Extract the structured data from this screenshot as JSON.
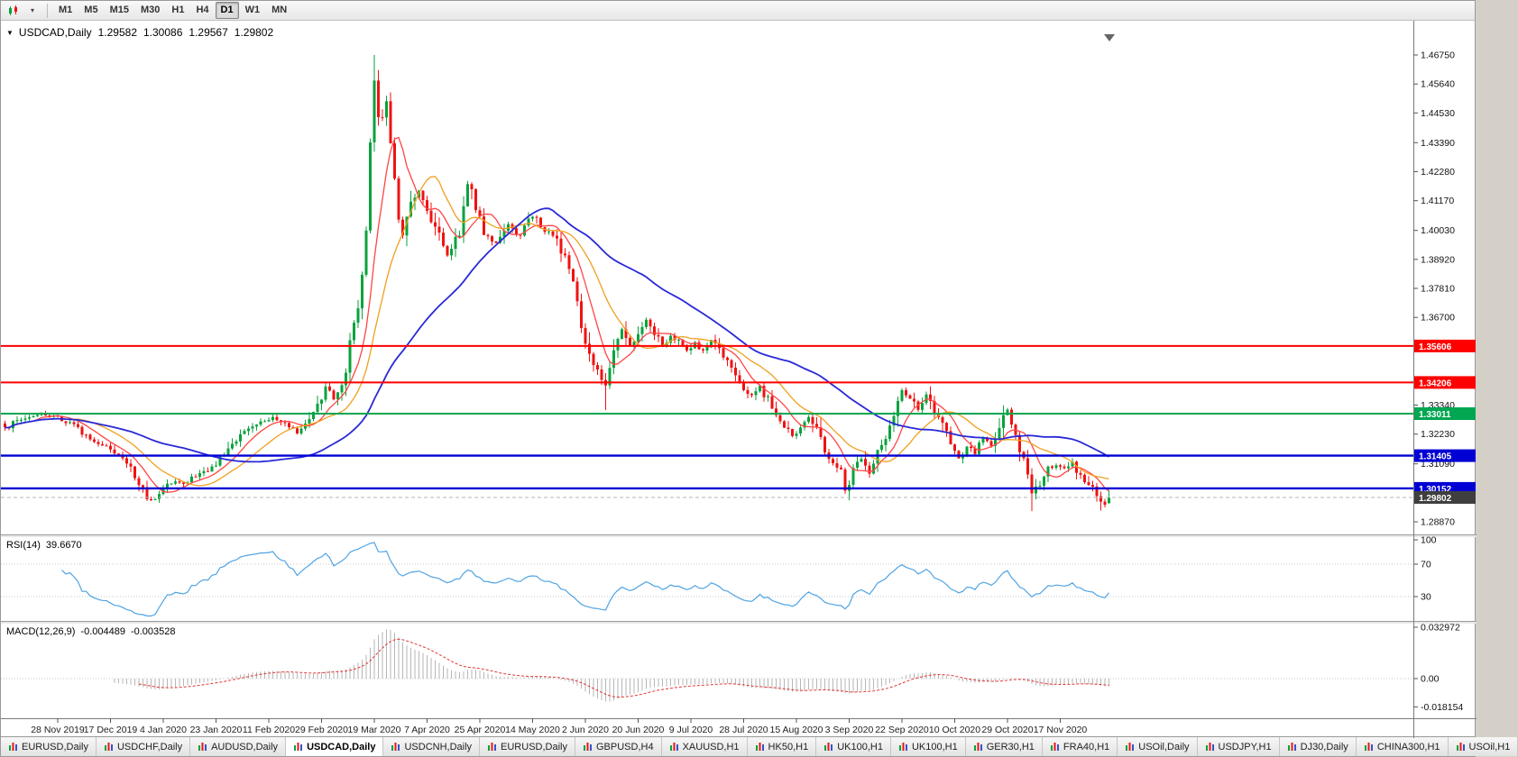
{
  "toolbar": {
    "timeframes": [
      {
        "label": "M1"
      },
      {
        "label": "M5"
      },
      {
        "label": "M15"
      },
      {
        "label": "M30"
      },
      {
        "label": "H1"
      },
      {
        "label": "H4"
      },
      {
        "label": "D1",
        "active": true
      },
      {
        "label": "W1"
      },
      {
        "label": "MN"
      }
    ]
  },
  "chart": {
    "symbol_title": "USDCAD,Daily",
    "ohlc": {
      "open": "1.29582",
      "high": "1.30086",
      "low": "1.29567",
      "close": "1.29802"
    },
    "colors": {
      "bull": "#09a23d",
      "bear": "#ef1212",
      "ma_fast": "#ff4545",
      "ma_mid": "#f0a020",
      "ma_slow": "#2929d8",
      "level_red": "#fe0000",
      "level_green": "#00a651",
      "level_blue": "#0000d4",
      "current_badge": "#3f3f3f",
      "rsi": "#4fa3e3",
      "macd_hist": "#b6b6b6",
      "macd_signal": "#e03535"
    },
    "price_axis_labels": [
      "1.46750",
      "1.45640",
      "1.44530",
      "1.43390",
      "1.42280",
      "1.41170",
      "1.40030",
      "1.38920",
      "1.37810",
      "1.36700",
      "1.33340",
      "1.32230",
      "1.31090",
      "1.28870"
    ],
    "levels": [
      {
        "price": 1.35606,
        "label": "1.35606",
        "color_key": "level_red",
        "width": 2
      },
      {
        "price": 1.34206,
        "label": "1.34206",
        "color_key": "level_red",
        "width": 2
      },
      {
        "price": 1.33011,
        "label": "1.33011",
        "color_key": "level_green",
        "width": 2
      },
      {
        "price": 1.31405,
        "label": "1.31405",
        "color_key": "level_blue",
        "width": 2.4
      },
      {
        "price": 1.30152,
        "label": "1.30152",
        "color_key": "level_blue",
        "width": 2.4
      }
    ],
    "current_price": "1.29802"
  },
  "chart_data": {
    "type": "candlestick",
    "symbol": "USDCAD",
    "timeframe": "Daily",
    "price_range": {
      "top": 1.4675,
      "bottom": 1.2887
    },
    "candle_count": 273,
    "close_anchors": [
      [
        0,
        1.3245
      ],
      [
        3,
        1.3275
      ],
      [
        6,
        1.329
      ],
      [
        9,
        1.33
      ],
      [
        13,
        1.3285
      ],
      [
        17,
        1.3255
      ],
      [
        21,
        1.32
      ],
      [
        26,
        1.3165
      ],
      [
        30,
        1.311
      ],
      [
        34,
        1.301
      ],
      [
        36,
        1.2965
      ],
      [
        38,
        1.2985
      ],
      [
        41,
        1.304
      ],
      [
        44,
        1.3035
      ],
      [
        48,
        1.307
      ],
      [
        52,
        1.3105
      ],
      [
        56,
        1.3185
      ],
      [
        60,
        1.324
      ],
      [
        63,
        1.327
      ],
      [
        66,
        1.329
      ],
      [
        69,
        1.326
      ],
      [
        72,
        1.323
      ],
      [
        75,
        1.327
      ],
      [
        77,
        1.333
      ],
      [
        79,
        1.34
      ],
      [
        81,
        1.336
      ],
      [
        83,
        1.34
      ],
      [
        85,
        1.356
      ],
      [
        87,
        1.372
      ],
      [
        88,
        1.385
      ],
      [
        89,
        1.401
      ],
      [
        90,
        1.433
      ],
      [
        91,
        1.456
      ],
      [
        92,
        1.442
      ],
      [
        94,
        1.448
      ],
      [
        95,
        1.434
      ],
      [
        97,
        1.405
      ],
      [
        98,
        1.398
      ],
      [
        100,
        1.41
      ],
      [
        102,
        1.416
      ],
      [
        104,
        1.408
      ],
      [
        106,
        1.402
      ],
      [
        109,
        1.391
      ],
      [
        112,
        1.4
      ],
      [
        114,
        1.419
      ],
      [
        116,
        1.409
      ],
      [
        118,
        1.399
      ],
      [
        121,
        1.395
      ],
      [
        124,
        1.403
      ],
      [
        127,
        1.398
      ],
      [
        130,
        1.406
      ],
      [
        133,
        1.4
      ],
      [
        136,
        1.398
      ],
      [
        138,
        1.389
      ],
      [
        140,
        1.379
      ],
      [
        142,
        1.363
      ],
      [
        144,
        1.352
      ],
      [
        146,
        1.346
      ],
      [
        148,
        1.342
      ],
      [
        150,
        1.355
      ],
      [
        152,
        1.362
      ],
      [
        154,
        1.356
      ],
      [
        156,
        1.361
      ],
      [
        158,
        1.366
      ],
      [
        160,
        1.361
      ],
      [
        162,
        1.356
      ],
      [
        164,
        1.36
      ],
      [
        166,
        1.358
      ],
      [
        168,
        1.3545
      ],
      [
        170,
        1.357
      ],
      [
        172,
        1.354
      ],
      [
        174,
        1.358
      ],
      [
        176,
        1.354
      ],
      [
        178,
        1.35
      ],
      [
        180,
        1.345
      ],
      [
        182,
        1.34
      ],
      [
        184,
        1.337
      ],
      [
        186,
        1.341
      ],
      [
        188,
        1.335
      ],
      [
        190,
        1.329
      ],
      [
        192,
        1.326
      ],
      [
        194,
        1.322
      ],
      [
        196,
        1.324
      ],
      [
        198,
        1.329
      ],
      [
        200,
        1.323
      ],
      [
        202,
        1.316
      ],
      [
        204,
        1.312
      ],
      [
        206,
        1.308
      ],
      [
        207,
        1.301
      ],
      [
        209,
        1.309
      ],
      [
        211,
        1.313
      ],
      [
        213,
        1.308
      ],
      [
        215,
        1.317
      ],
      [
        217,
        1.322
      ],
      [
        219,
        1.331
      ],
      [
        221,
        1.339
      ],
      [
        223,
        1.336
      ],
      [
        225,
        1.332
      ],
      [
        227,
        1.337
      ],
      [
        229,
        1.331
      ],
      [
        231,
        1.327
      ],
      [
        233,
        1.317
      ],
      [
        235,
        1.313
      ],
      [
        237,
        1.318
      ],
      [
        239,
        1.315
      ],
      [
        241,
        1.32
      ],
      [
        243,
        1.318
      ],
      [
        245,
        1.324
      ],
      [
        247,
        1.332
      ],
      [
        249,
        1.323
      ],
      [
        251,
        1.312
      ],
      [
        253,
        1.299
      ],
      [
        255,
        1.304
      ],
      [
        257,
        1.309
      ],
      [
        259,
        1.31
      ],
      [
        261,
        1.309
      ],
      [
        263,
        1.311
      ],
      [
        265,
        1.306
      ],
      [
        267,
        1.303
      ],
      [
        269,
        1.299
      ],
      [
        271,
        1.2958
      ],
      [
        272,
        1.29802
      ]
    ],
    "pins": {
      "91": {
        "high": 1.4675
      },
      "148": {
        "low": 1.3315
      },
      "207": {
        "low": 1.2994
      },
      "253": {
        "low": 1.2928
      },
      "270": {
        "low": 1.293
      },
      "272": {
        "open": 1.29582,
        "high": 1.30086,
        "low": 1.29567,
        "close": 1.29802
      }
    },
    "moving_averages": [
      {
        "name": "fast",
        "period": 8,
        "color_key": "ma_fast",
        "width": 1.3
      },
      {
        "name": "mid",
        "period": 17,
        "color_key": "ma_mid",
        "width": 1.3
      },
      {
        "name": "slow",
        "period": 45,
        "color_key": "ma_slow",
        "width": 1.8
      }
    ],
    "date_labels": [
      {
        "label": "28 Nov 2019",
        "i": 13
      },
      {
        "label": "17 Dec 2019",
        "i": 26
      },
      {
        "label": "4 Jan 2020",
        "i": 39
      },
      {
        "label": "23 Jan 2020",
        "i": 52
      },
      {
        "label": "11 Feb 2020",
        "i": 65
      },
      {
        "label": "29 Feb 2020",
        "i": 78
      },
      {
        "label": "19 Mar 2020",
        "i": 91
      },
      {
        "label": "7 Apr 2020",
        "i": 104
      },
      {
        "label": "25 Apr 2020",
        "i": 117
      },
      {
        "label": "14 May 2020",
        "i": 130
      },
      {
        "label": "2 Jun 2020",
        "i": 143
      },
      {
        "label": "20 Jun 2020",
        "i": 156
      },
      {
        "label": "9 Jul 2020",
        "i": 169
      },
      {
        "label": "28 Jul 2020",
        "i": 182
      },
      {
        "label": "15 Aug 2020",
        "i": 195
      },
      {
        "label": "3 Sep 2020",
        "i": 208
      },
      {
        "label": "22 Sep 2020",
        "i": 221
      },
      {
        "label": "10 Oct 2020",
        "i": 234
      },
      {
        "label": "29 Oct 2020",
        "i": 247
      },
      {
        "label": "17 Nov 2020",
        "i": 260
      }
    ]
  },
  "rsi": {
    "name": "RSI(14)",
    "value": "39.6670",
    "period": 14,
    "scale_labels": [
      {
        "v": 100,
        "label": "100"
      },
      {
        "v": 70,
        "label": "70"
      },
      {
        "v": 30,
        "label": "30"
      }
    ],
    "levels": [
      70,
      30
    ]
  },
  "macd": {
    "name": "MACD(12,26,9)",
    "value_main": "-0.004489",
    "value_signal": "-0.003528",
    "fast": 12,
    "slow": 26,
    "signal": 9,
    "scale_labels": [
      {
        "v": 0.032972,
        "label": "0.032972"
      },
      {
        "v": 0,
        "label": "0.00"
      },
      {
        "v": -0.018154,
        "label": "-0.018154"
      }
    ]
  },
  "tabs": [
    {
      "label": "EURUSD,Daily"
    },
    {
      "label": "USDCHF,Daily"
    },
    {
      "label": "AUDUSD,Daily"
    },
    {
      "label": "USDCAD,Daily",
      "active": true
    },
    {
      "label": "USDCNH,Daily"
    },
    {
      "label": "EURUSD,Daily"
    },
    {
      "label": "GBPUSD,H4"
    },
    {
      "label": "XAUUSD,H1"
    },
    {
      "label": "HK50,H1"
    },
    {
      "label": "UK100,H1"
    },
    {
      "label": "UK100,H1"
    },
    {
      "label": "GER30,H1"
    },
    {
      "label": "FRA40,H1"
    },
    {
      "label": "USOil,Daily"
    },
    {
      "label": "USDJPY,H1"
    },
    {
      "label": "DJ30,Daily"
    },
    {
      "label": "CHINA300,H1"
    },
    {
      "label": "USOil,H1"
    }
  ]
}
